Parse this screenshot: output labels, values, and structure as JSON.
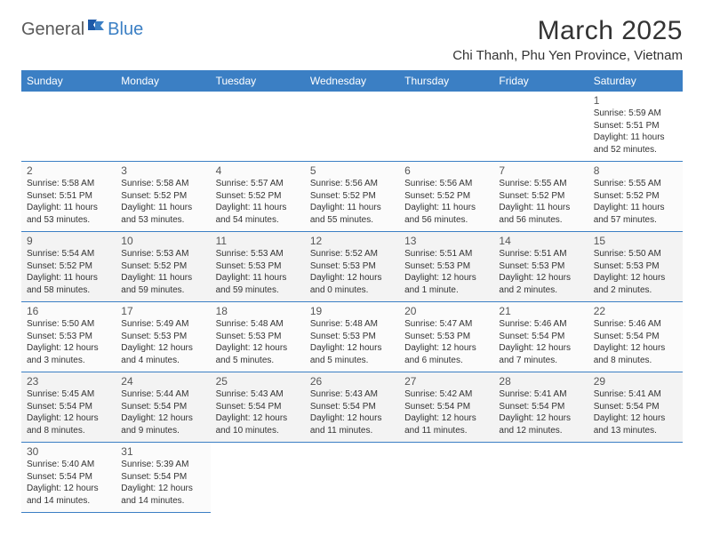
{
  "logo": {
    "text1": "General",
    "text2": "Blue"
  },
  "title": "March 2025",
  "location": "Chi Thanh, Phu Yen Province, Vietnam",
  "colors": {
    "header_bg": "#3b7fc4",
    "header_text": "#ffffff",
    "border": "#3b7fc4",
    "logo_gray": "#5a5a5a",
    "logo_blue": "#3b7fc4",
    "body_text": "#333333",
    "row_alt_a": "#f3f3f3",
    "row_alt_b": "#fbfbfb"
  },
  "day_headers": [
    "Sunday",
    "Monday",
    "Tuesday",
    "Wednesday",
    "Thursday",
    "Friday",
    "Saturday"
  ],
  "weeks": [
    [
      null,
      null,
      null,
      null,
      null,
      null,
      {
        "d": "1",
        "sr": "Sunrise: 5:59 AM",
        "ss": "Sunset: 5:51 PM",
        "dl": "Daylight: 11 hours and 52 minutes."
      }
    ],
    [
      {
        "d": "2",
        "sr": "Sunrise: 5:58 AM",
        "ss": "Sunset: 5:51 PM",
        "dl": "Daylight: 11 hours and 53 minutes."
      },
      {
        "d": "3",
        "sr": "Sunrise: 5:58 AM",
        "ss": "Sunset: 5:52 PM",
        "dl": "Daylight: 11 hours and 53 minutes."
      },
      {
        "d": "4",
        "sr": "Sunrise: 5:57 AM",
        "ss": "Sunset: 5:52 PM",
        "dl": "Daylight: 11 hours and 54 minutes."
      },
      {
        "d": "5",
        "sr": "Sunrise: 5:56 AM",
        "ss": "Sunset: 5:52 PM",
        "dl": "Daylight: 11 hours and 55 minutes."
      },
      {
        "d": "6",
        "sr": "Sunrise: 5:56 AM",
        "ss": "Sunset: 5:52 PM",
        "dl": "Daylight: 11 hours and 56 minutes."
      },
      {
        "d": "7",
        "sr": "Sunrise: 5:55 AM",
        "ss": "Sunset: 5:52 PM",
        "dl": "Daylight: 11 hours and 56 minutes."
      },
      {
        "d": "8",
        "sr": "Sunrise: 5:55 AM",
        "ss": "Sunset: 5:52 PM",
        "dl": "Daylight: 11 hours and 57 minutes."
      }
    ],
    [
      {
        "d": "9",
        "sr": "Sunrise: 5:54 AM",
        "ss": "Sunset: 5:52 PM",
        "dl": "Daylight: 11 hours and 58 minutes."
      },
      {
        "d": "10",
        "sr": "Sunrise: 5:53 AM",
        "ss": "Sunset: 5:52 PM",
        "dl": "Daylight: 11 hours and 59 minutes."
      },
      {
        "d": "11",
        "sr": "Sunrise: 5:53 AM",
        "ss": "Sunset: 5:53 PM",
        "dl": "Daylight: 11 hours and 59 minutes."
      },
      {
        "d": "12",
        "sr": "Sunrise: 5:52 AM",
        "ss": "Sunset: 5:53 PM",
        "dl": "Daylight: 12 hours and 0 minutes."
      },
      {
        "d": "13",
        "sr": "Sunrise: 5:51 AM",
        "ss": "Sunset: 5:53 PM",
        "dl": "Daylight: 12 hours and 1 minute."
      },
      {
        "d": "14",
        "sr": "Sunrise: 5:51 AM",
        "ss": "Sunset: 5:53 PM",
        "dl": "Daylight: 12 hours and 2 minutes."
      },
      {
        "d": "15",
        "sr": "Sunrise: 5:50 AM",
        "ss": "Sunset: 5:53 PM",
        "dl": "Daylight: 12 hours and 2 minutes."
      }
    ],
    [
      {
        "d": "16",
        "sr": "Sunrise: 5:50 AM",
        "ss": "Sunset: 5:53 PM",
        "dl": "Daylight: 12 hours and 3 minutes."
      },
      {
        "d": "17",
        "sr": "Sunrise: 5:49 AM",
        "ss": "Sunset: 5:53 PM",
        "dl": "Daylight: 12 hours and 4 minutes."
      },
      {
        "d": "18",
        "sr": "Sunrise: 5:48 AM",
        "ss": "Sunset: 5:53 PM",
        "dl": "Daylight: 12 hours and 5 minutes."
      },
      {
        "d": "19",
        "sr": "Sunrise: 5:48 AM",
        "ss": "Sunset: 5:53 PM",
        "dl": "Daylight: 12 hours and 5 minutes."
      },
      {
        "d": "20",
        "sr": "Sunrise: 5:47 AM",
        "ss": "Sunset: 5:53 PM",
        "dl": "Daylight: 12 hours and 6 minutes."
      },
      {
        "d": "21",
        "sr": "Sunrise: 5:46 AM",
        "ss": "Sunset: 5:54 PM",
        "dl": "Daylight: 12 hours and 7 minutes."
      },
      {
        "d": "22",
        "sr": "Sunrise: 5:46 AM",
        "ss": "Sunset: 5:54 PM",
        "dl": "Daylight: 12 hours and 8 minutes."
      }
    ],
    [
      {
        "d": "23",
        "sr": "Sunrise: 5:45 AM",
        "ss": "Sunset: 5:54 PM",
        "dl": "Daylight: 12 hours and 8 minutes."
      },
      {
        "d": "24",
        "sr": "Sunrise: 5:44 AM",
        "ss": "Sunset: 5:54 PM",
        "dl": "Daylight: 12 hours and 9 minutes."
      },
      {
        "d": "25",
        "sr": "Sunrise: 5:43 AM",
        "ss": "Sunset: 5:54 PM",
        "dl": "Daylight: 12 hours and 10 minutes."
      },
      {
        "d": "26",
        "sr": "Sunrise: 5:43 AM",
        "ss": "Sunset: 5:54 PM",
        "dl": "Daylight: 12 hours and 11 minutes."
      },
      {
        "d": "27",
        "sr": "Sunrise: 5:42 AM",
        "ss": "Sunset: 5:54 PM",
        "dl": "Daylight: 12 hours and 11 minutes."
      },
      {
        "d": "28",
        "sr": "Sunrise: 5:41 AM",
        "ss": "Sunset: 5:54 PM",
        "dl": "Daylight: 12 hours and 12 minutes."
      },
      {
        "d": "29",
        "sr": "Sunrise: 5:41 AM",
        "ss": "Sunset: 5:54 PM",
        "dl": "Daylight: 12 hours and 13 minutes."
      }
    ],
    [
      {
        "d": "30",
        "sr": "Sunrise: 5:40 AM",
        "ss": "Sunset: 5:54 PM",
        "dl": "Daylight: 12 hours and 14 minutes."
      },
      {
        "d": "31",
        "sr": "Sunrise: 5:39 AM",
        "ss": "Sunset: 5:54 PM",
        "dl": "Daylight: 12 hours and 14 minutes."
      },
      null,
      null,
      null,
      null,
      null
    ]
  ]
}
